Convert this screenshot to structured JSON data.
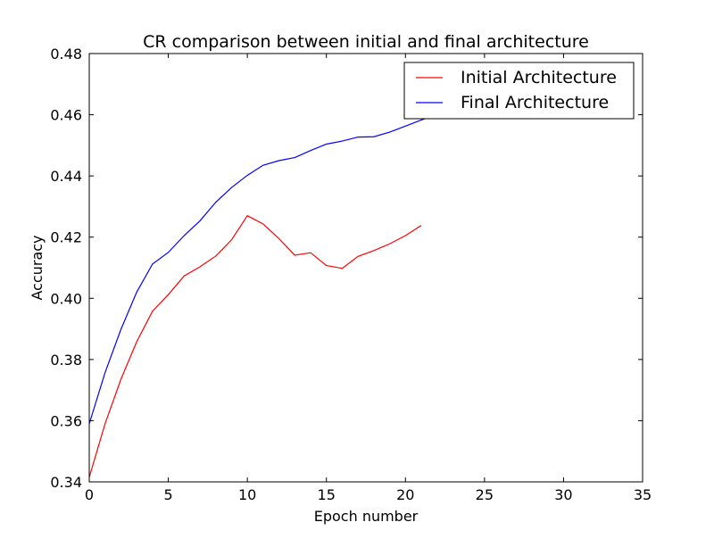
{
  "chart_data": {
    "type": "line",
    "title": "CR comparison between initial and final architecture",
    "xlabel": "Epoch number",
    "ylabel": "Accuracy",
    "xlim": [
      0,
      35
    ],
    "ylim": [
      0.34,
      0.48
    ],
    "xticks": [
      0,
      5,
      10,
      15,
      20,
      25,
      30,
      35
    ],
    "yticks": [
      "0.34",
      "0.36",
      "0.38",
      "0.40",
      "0.42",
      "0.44",
      "0.46",
      "0.48"
    ],
    "grid": false,
    "legend_position": "top-right",
    "series": [
      {
        "name": "Initial Architecture",
        "color": "#ff0000",
        "x": [
          0,
          1,
          2,
          3,
          4,
          5,
          6,
          7,
          8,
          9,
          10,
          11,
          12,
          13,
          14,
          15,
          16,
          17,
          18,
          19,
          20,
          21
        ],
        "y": [
          0.3415,
          0.359,
          0.3735,
          0.3858,
          0.3958,
          0.4012,
          0.4073,
          0.4103,
          0.4138,
          0.4191,
          0.427,
          0.4243,
          0.4195,
          0.4141,
          0.4149,
          0.4107,
          0.4098,
          0.4137,
          0.4156,
          0.4178,
          0.4205,
          0.4238
        ]
      },
      {
        "name": "Final Architecture",
        "color": "#0000ff",
        "x": [
          0,
          1,
          2,
          3,
          4,
          5,
          6,
          7,
          8,
          9,
          10,
          11,
          12,
          13,
          14,
          15,
          16,
          17,
          18,
          19,
          20,
          21,
          22
        ],
        "y": [
          0.359,
          0.3757,
          0.3898,
          0.402,
          0.4112,
          0.415,
          0.4205,
          0.4253,
          0.4314,
          0.4362,
          0.4402,
          0.4435,
          0.445,
          0.446,
          0.4483,
          0.4504,
          0.4514,
          0.4527,
          0.4528,
          0.4543,
          0.4563,
          0.4583,
          0.4601
        ]
      }
    ]
  }
}
